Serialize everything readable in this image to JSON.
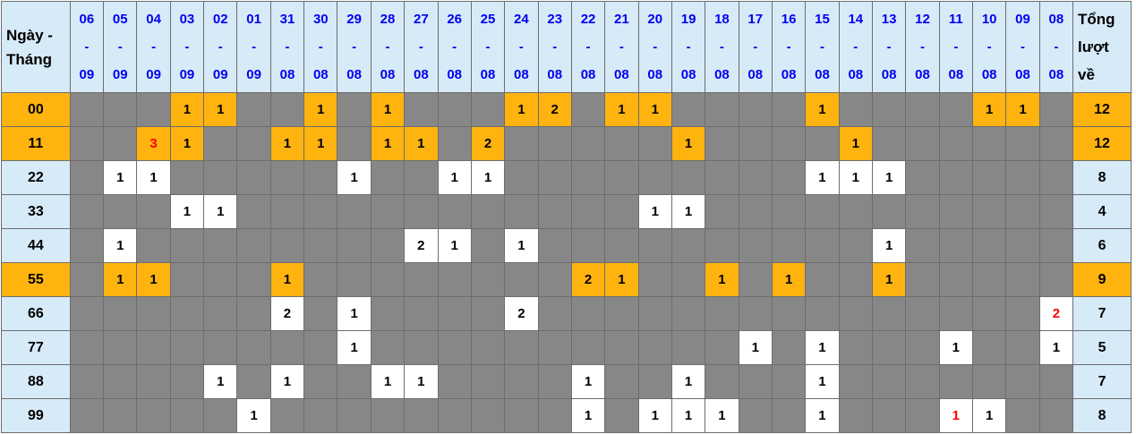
{
  "colors": {
    "header_bg": "#d7eaf8",
    "highlight": "#ffb30f",
    "empty_cell": "#878787",
    "filled_cell": "#ffffff",
    "grid_border": "#6d6d6d",
    "date_text": "#0000f0",
    "red_text": "#ff0000",
    "text": "#000000"
  },
  "chart_data": {
    "type": "table",
    "title": "",
    "corner_header_lines": [
      "Ngày -",
      "Tháng"
    ],
    "total_header_lines": [
      "Tổng",
      "lượt",
      "về"
    ],
    "date_columns": [
      "06-09",
      "05-09",
      "04-09",
      "03-09",
      "02-09",
      "01-09",
      "31-08",
      "30-08",
      "29-08",
      "28-08",
      "27-08",
      "26-08",
      "25-08",
      "24-08",
      "23-08",
      "22-08",
      "21-08",
      "20-08",
      "19-08",
      "18-08",
      "17-08",
      "16-08",
      "15-08",
      "14-08",
      "13-08",
      "12-08",
      "11-08",
      "10-08",
      "09-08",
      "08-08"
    ],
    "rows": [
      {
        "label": "00",
        "highlight": true,
        "total": "12",
        "red_indices": [],
        "values": [
          "",
          "",
          "",
          "1",
          "1",
          "",
          "",
          "1",
          "",
          "1",
          "",
          "",
          "",
          "1",
          "2",
          "",
          "1",
          "1",
          "",
          "",
          "",
          "",
          "1",
          "",
          "",
          "",
          "",
          "1",
          "1",
          ""
        ]
      },
      {
        "label": "11",
        "highlight": true,
        "total": "12",
        "red_indices": [
          2
        ],
        "values": [
          "",
          "",
          "3",
          "1",
          "",
          "",
          "1",
          "1",
          "",
          "1",
          "1",
          "",
          "2",
          "",
          "",
          "",
          "",
          "",
          "1",
          "",
          "",
          "",
          "",
          "1",
          "",
          "",
          "",
          "",
          "",
          ""
        ]
      },
      {
        "label": "22",
        "highlight": false,
        "total": "8",
        "red_indices": [],
        "values": [
          "",
          "1",
          "1",
          "",
          "",
          "",
          "",
          "",
          "1",
          "",
          "",
          "1",
          "1",
          "",
          "",
          "",
          "",
          "",
          "",
          "",
          "",
          "",
          "1",
          "1",
          "1",
          "",
          "",
          "",
          "",
          ""
        ]
      },
      {
        "label": "33",
        "highlight": false,
        "total": "4",
        "red_indices": [],
        "values": [
          "",
          "",
          "",
          "1",
          "1",
          "",
          "",
          "",
          "",
          "",
          "",
          "",
          "",
          "",
          "",
          "",
          "",
          "1",
          "1",
          "",
          "",
          "",
          "",
          "",
          "",
          "",
          "",
          "",
          "",
          ""
        ]
      },
      {
        "label": "44",
        "highlight": false,
        "total": "6",
        "red_indices": [],
        "values": [
          "",
          "1",
          "",
          "",
          "",
          "",
          "",
          "",
          "",
          "",
          "2",
          "1",
          "",
          "1",
          "",
          "",
          "",
          "",
          "",
          "",
          "",
          "",
          "",
          "",
          "1",
          "",
          "",
          "",
          "",
          ""
        ]
      },
      {
        "label": "55",
        "highlight": true,
        "total": "9",
        "red_indices": [],
        "values": [
          "",
          "1",
          "1",
          "",
          "",
          "",
          "1",
          "",
          "",
          "",
          "",
          "",
          "",
          "",
          "",
          "2",
          "1",
          "",
          "",
          "1",
          "",
          "1",
          "",
          "",
          "1",
          "",
          "",
          "",
          "",
          ""
        ]
      },
      {
        "label": "66",
        "highlight": false,
        "total": "7",
        "red_indices": [
          29
        ],
        "values": [
          "",
          "",
          "",
          "",
          "",
          "",
          "2",
          "",
          "1",
          "",
          "",
          "",
          "",
          "2",
          "",
          "",
          "",
          "",
          "",
          "",
          "",
          "",
          "",
          "",
          "",
          "",
          "",
          "",
          "",
          "2"
        ]
      },
      {
        "label": "77",
        "highlight": false,
        "total": "5",
        "red_indices": [],
        "values": [
          "",
          "",
          "",
          "",
          "",
          "",
          "",
          "",
          "1",
          "",
          "",
          "",
          "",
          "",
          "",
          "",
          "",
          "",
          "",
          "",
          "1",
          "",
          "1",
          "",
          "",
          "",
          "1",
          "",
          "",
          "1"
        ]
      },
      {
        "label": "88",
        "highlight": false,
        "total": "7",
        "red_indices": [],
        "values": [
          "",
          "",
          "",
          "",
          "1",
          "",
          "1",
          "",
          "",
          "1",
          "1",
          "",
          "",
          "",
          "",
          "1",
          "",
          "",
          "1",
          "",
          "",
          "",
          "1",
          "",
          "",
          "",
          "",
          "",
          "",
          ""
        ]
      },
      {
        "label": "99",
        "highlight": false,
        "total": "8",
        "red_indices": [
          26
        ],
        "values": [
          "",
          "",
          "",
          "",
          "",
          "1",
          "",
          "",
          "",
          "",
          "",
          "",
          "",
          "",
          "",
          "1",
          "",
          "1",
          "1",
          "1",
          "",
          "",
          "1",
          "",
          "",
          "",
          "1",
          "1",
          "",
          ""
        ]
      }
    ]
  }
}
